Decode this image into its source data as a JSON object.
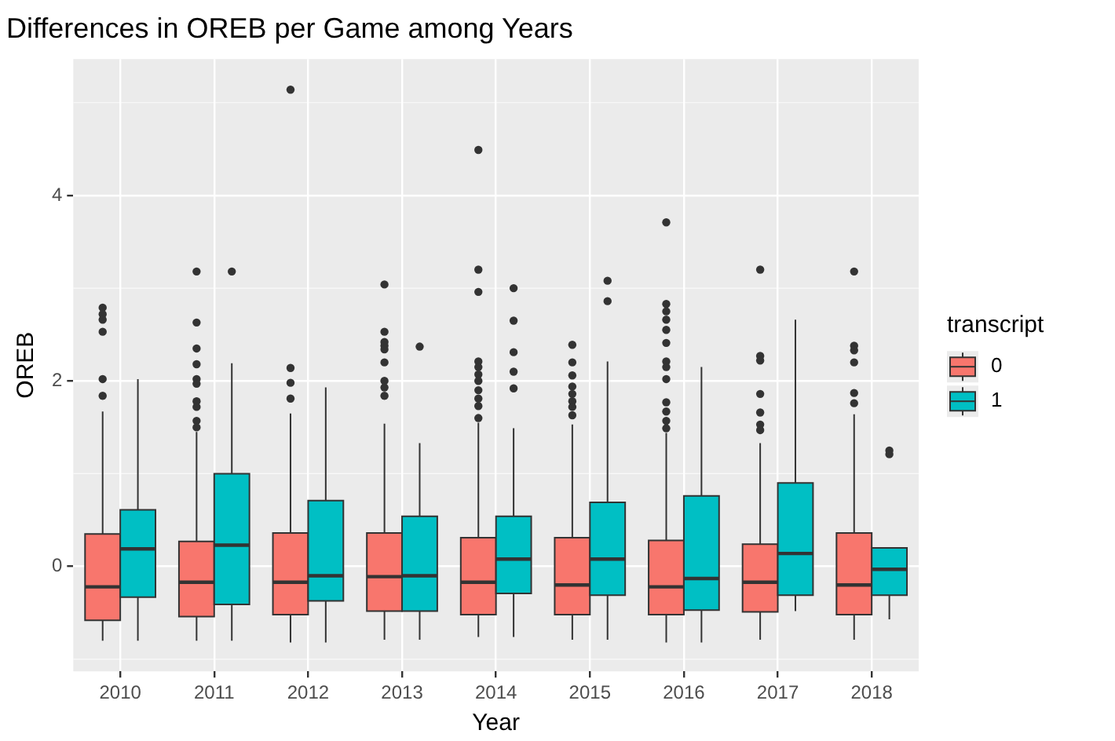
{
  "chart_data": {
    "type": "box",
    "title": "Differences in OREB per Game among Years",
    "xlabel": "Year",
    "ylabel": "OREB",
    "legend_title": "transcript",
    "legend": "right",
    "grid": true,
    "categories": [
      "2010",
      "2011",
      "2012",
      "2013",
      "2014",
      "2015",
      "2016",
      "2017",
      "2018"
    ],
    "ylim": [
      -1.13,
      5.47
    ],
    "yticks": [
      0,
      2,
      4
    ],
    "series": [
      {
        "name": "0",
        "color": "#f8766d",
        "boxes": [
          {
            "low": -0.8,
            "q1": -0.58,
            "median": -0.22,
            "q3": 0.35,
            "high": 1.67,
            "outliers": [
              2.79,
              2.72,
              2.66,
              2.53,
              2.02,
              1.84
            ]
          },
          {
            "low": -0.8,
            "q1": -0.54,
            "median": -0.17,
            "q3": 0.27,
            "high": 1.45,
            "outliers": [
              3.18,
              2.63,
              2.35,
              2.18,
              2.02,
              1.97,
              1.78,
              1.72,
              1.57,
              1.5
            ]
          },
          {
            "low": -0.82,
            "q1": -0.52,
            "median": -0.17,
            "q3": 0.36,
            "high": 1.65,
            "outliers": [
              5.14,
              2.14,
              1.98,
              1.81
            ]
          },
          {
            "low": -0.79,
            "q1": -0.48,
            "median": -0.11,
            "q3": 0.36,
            "high": 1.54,
            "outliers": [
              3.04,
              2.53,
              2.42,
              2.38,
              2.34,
              2.2,
              2.0,
              1.93,
              1.84
            ]
          },
          {
            "low": -0.76,
            "q1": -0.52,
            "median": -0.17,
            "q3": 0.31,
            "high": 1.55,
            "outliers": [
              4.49,
              3.2,
              2.96,
              2.21,
              2.15,
              2.07,
              2.0,
              1.9,
              1.81,
              1.73,
              1.6
            ]
          },
          {
            "low": -0.79,
            "q1": -0.52,
            "median": -0.2,
            "q3": 0.31,
            "high": 1.53,
            "outliers": [
              2.39,
              2.2,
              2.06,
              1.94,
              1.86,
              1.78,
              1.72,
              1.63
            ]
          },
          {
            "low": -0.82,
            "q1": -0.52,
            "median": -0.22,
            "q3": 0.28,
            "high": 1.44,
            "outliers": [
              3.71,
              2.83,
              2.75,
              2.66,
              2.55,
              2.41,
              2.21,
              2.15,
              2.02,
              1.77,
              1.67,
              1.57,
              1.49
            ]
          },
          {
            "low": -0.79,
            "q1": -0.49,
            "median": -0.17,
            "q3": 0.24,
            "high": 1.33,
            "outliers": [
              3.2,
              2.27,
              2.22,
              1.86,
              1.66,
              1.53,
              1.47
            ]
          },
          {
            "low": -0.79,
            "q1": -0.52,
            "median": -0.2,
            "q3": 0.36,
            "high": 1.64,
            "outliers": [
              3.18,
              2.38,
              2.33,
              2.2,
              1.87,
              1.76
            ]
          }
        ]
      },
      {
        "name": "1",
        "color": "#00bfc4",
        "boxes": [
          {
            "low": -0.8,
            "q1": -0.33,
            "median": 0.19,
            "q3": 0.61,
            "high": 2.02
          },
          {
            "low": -0.8,
            "q1": -0.41,
            "median": 0.23,
            "q3": 1.0,
            "high": 2.19,
            "outliers": [
              3.18
            ]
          },
          {
            "low": -0.82,
            "q1": -0.37,
            "median": -0.1,
            "q3": 0.71,
            "high": 1.93
          },
          {
            "low": -0.79,
            "q1": -0.48,
            "median": -0.1,
            "q3": 0.54,
            "high": 1.33,
            "outliers": [
              2.37
            ]
          },
          {
            "low": -0.76,
            "q1": -0.29,
            "median": 0.08,
            "q3": 0.54,
            "high": 1.49,
            "outliers": [
              3.0,
              2.65,
              2.31,
              2.1,
              1.92
            ]
          },
          {
            "low": -0.79,
            "q1": -0.31,
            "median": 0.08,
            "q3": 0.69,
            "high": 2.21,
            "outliers": [
              3.08,
              2.86
            ]
          },
          {
            "low": -0.82,
            "q1": -0.47,
            "median": -0.13,
            "q3": 0.76,
            "high": 2.15
          },
          {
            "low": -0.48,
            "q1": -0.31,
            "median": 0.14,
            "q3": 0.9,
            "high": 2.66
          },
          {
            "low": -0.57,
            "q1": -0.31,
            "median": -0.03,
            "q3": 0.2,
            "high": 0.2,
            "outliers": [
              1.25,
              1.21
            ]
          }
        ]
      }
    ]
  }
}
